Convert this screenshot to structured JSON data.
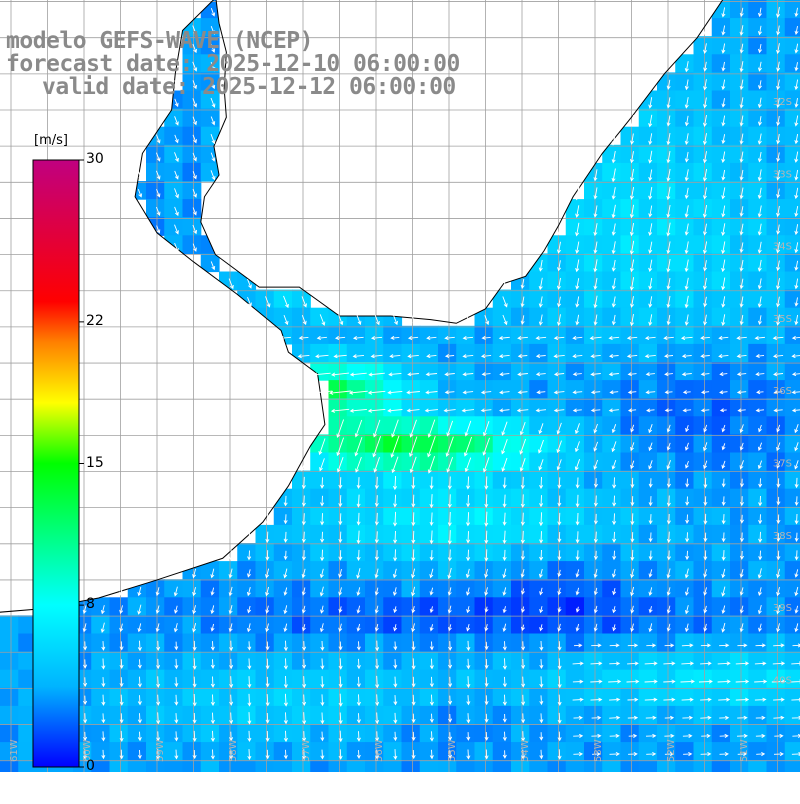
{
  "header": {
    "line1": "modelo GEFS-WAVE (NCEP)",
    "line2": "forecast date: 2025-12-10 06:00:00",
    "line3": "valid date: 2025-12-12 06:00:00"
  },
  "colorbar": {
    "unit": "[m/s]",
    "min": 0,
    "max": 30,
    "ticks": [
      {
        "value": 0,
        "label": "0"
      },
      {
        "value": 8,
        "label": "8"
      },
      {
        "value": 15,
        "label": "15"
      },
      {
        "value": 22,
        "label": "22"
      },
      {
        "value": 30,
        "label": "30"
      }
    ],
    "colors": [
      "#0000ff",
      "#00b4ff",
      "#00ffff",
      "#00ff00",
      "#ffff00",
      "#ff8000",
      "#ff0000",
      "#c00080"
    ]
  },
  "map": {
    "lon_range": [
      -61.7,
      -50.8
    ],
    "lat_range": [
      -41.3,
      -30.4
    ],
    "lat_labels": [
      {
        "lat": -32,
        "label": "32S"
      },
      {
        "lat": -33,
        "label": "33S"
      },
      {
        "lat": -34,
        "label": "34S"
      },
      {
        "lat": -35,
        "label": "35S"
      },
      {
        "lat": -36,
        "label": "36S"
      },
      {
        "lat": -37,
        "label": "37S"
      },
      {
        "lat": -38,
        "label": "38S"
      },
      {
        "lat": -39,
        "label": "39S"
      },
      {
        "lat": -40,
        "label": "40S"
      }
    ],
    "lon_labels": [
      {
        "lon": -61,
        "label": "61W"
      },
      {
        "lon": -60,
        "label": "60W"
      },
      {
        "lon": -59,
        "label": "59W"
      },
      {
        "lon": -58,
        "label": "58W"
      },
      {
        "lon": -57,
        "label": "57W"
      },
      {
        "lon": -56,
        "label": "56W"
      },
      {
        "lon": -55,
        "label": "55W"
      },
      {
        "lon": -54,
        "label": "54W"
      },
      {
        "lon": -53,
        "label": "53W"
      },
      {
        "lon": -52,
        "label": "52W"
      },
      {
        "lon": -51,
        "label": "51W"
      }
    ],
    "land_color": "#ffffff",
    "coast_color": "#000000",
    "grid_color": "#a0a0a0"
  }
}
